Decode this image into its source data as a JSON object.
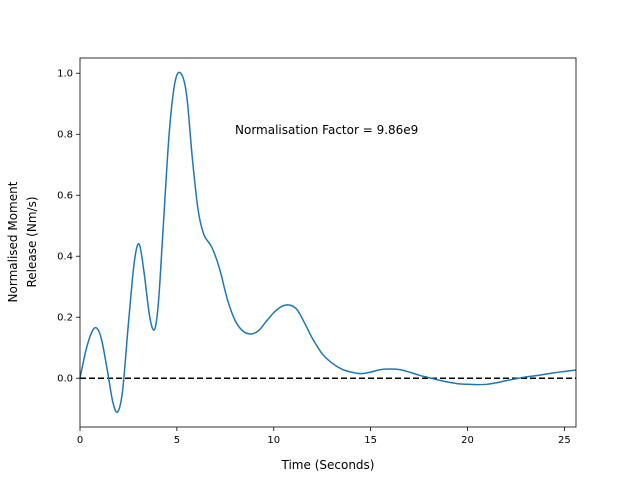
{
  "chart_data": {
    "type": "line",
    "title": "",
    "xlabel": "Time (Seconds)",
    "ylabel_lines": [
      "Normalised Moment",
      "Release (Nm/s)"
    ],
    "xlim": [
      0,
      25.6
    ],
    "ylim": [
      -0.16,
      1.05
    ],
    "xticks": [
      0,
      5,
      10,
      15,
      20,
      25
    ],
    "yticks": [
      0.0,
      0.2,
      0.4,
      0.6,
      0.8,
      1.0
    ],
    "xtick_labels": [
      "0",
      "5",
      "10",
      "15",
      "20",
      "25"
    ],
    "ytick_labels": [
      "0.0",
      "0.2",
      "0.4",
      "0.6",
      "0.8",
      "1.0"
    ],
    "annotation": "Normalisation Factor = 9.86e9",
    "reference_line": {
      "y": 0,
      "style": "dashed",
      "color": "#000000"
    },
    "series": [
      {
        "color": "#1f77b4",
        "x": [
          0,
          0.3,
          0.6,
          0.85,
          1.1,
          1.4,
          1.7,
          1.95,
          2.2,
          2.5,
          2.8,
          3.05,
          3.3,
          3.6,
          3.85,
          4.05,
          4.3,
          4.6,
          4.9,
          5.2,
          5.5,
          5.8,
          6.1,
          6.4,
          6.8,
          7.2,
          7.6,
          8.0,
          8.4,
          8.8,
          9.2,
          9.6,
          10.0,
          10.4,
          10.8,
          11.2,
          11.6,
          12.0,
          12.5,
          13.0,
          13.5,
          14.0,
          14.5,
          15.0,
          15.5,
          16.0,
          16.5,
          17.0,
          17.5,
          18.0,
          18.5,
          19.0,
          19.5,
          20.0,
          20.5,
          21.0,
          21.5,
          22.0,
          22.5,
          23.0,
          23.5,
          24.0,
          24.5,
          25.0,
          25.6
        ],
        "y": [
          0.0,
          0.09,
          0.15,
          0.165,
          0.13,
          0.03,
          -0.08,
          -0.11,
          -0.04,
          0.18,
          0.38,
          0.44,
          0.35,
          0.2,
          0.16,
          0.25,
          0.5,
          0.8,
          0.97,
          1.0,
          0.93,
          0.72,
          0.55,
          0.47,
          0.43,
          0.36,
          0.26,
          0.19,
          0.155,
          0.145,
          0.155,
          0.185,
          0.215,
          0.235,
          0.24,
          0.225,
          0.18,
          0.13,
          0.08,
          0.05,
          0.03,
          0.02,
          0.015,
          0.02,
          0.028,
          0.03,
          0.028,
          0.02,
          0.01,
          0.002,
          -0.006,
          -0.013,
          -0.018,
          -0.02,
          -0.021,
          -0.02,
          -0.015,
          -0.008,
          -0.002,
          0.004,
          0.008,
          0.013,
          0.018,
          0.022,
          0.027
        ]
      }
    ]
  }
}
